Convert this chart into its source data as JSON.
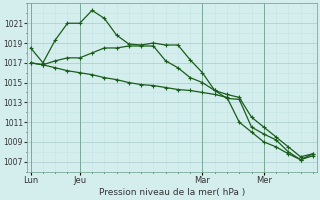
{
  "bg_color": "#d4eeee",
  "grid_color_major": "#aacccc",
  "grid_color_minor": "#c4e4e4",
  "line_color": "#1a5c1a",
  "title": "Pression niveau de la mer( hPa )",
  "xlabel_ticks": [
    "Lun",
    "Jeu",
    "Mar",
    "Mer"
  ],
  "xlabel_tick_positions": [
    0,
    4,
    14,
    19
  ],
  "ylim": [
    1006.0,
    1023.0
  ],
  "yticks": [
    1007,
    1009,
    1011,
    1013,
    1015,
    1017,
    1019,
    1021
  ],
  "xlim": [
    -0.3,
    23.3
  ],
  "series1_x": [
    0,
    1,
    2,
    3,
    4,
    5,
    6,
    7,
    8,
    9,
    10,
    11,
    12,
    13,
    14,
    15,
    16,
    17,
    18,
    19,
    20,
    21,
    22,
    23
  ],
  "series1_y": [
    1018.5,
    1017.0,
    1019.3,
    1021.0,
    1021.0,
    1022.3,
    1021.5,
    1019.8,
    1018.9,
    1018.8,
    1019.0,
    1018.8,
    1018.8,
    1017.3,
    1016.0,
    1014.2,
    1013.4,
    1013.3,
    1010.5,
    1009.8,
    1009.2,
    1008.0,
    1007.2,
    1007.8
  ],
  "series2_x": [
    0,
    1,
    2,
    3,
    4,
    5,
    6,
    7,
    8,
    9,
    10,
    11,
    12,
    13,
    14,
    15,
    16,
    17,
    18,
    19,
    20,
    21,
    22,
    23
  ],
  "series2_y": [
    1017.0,
    1016.8,
    1017.2,
    1017.5,
    1017.5,
    1018.0,
    1018.5,
    1018.5,
    1018.7,
    1018.7,
    1018.7,
    1017.2,
    1016.5,
    1015.5,
    1015.0,
    1014.2,
    1013.8,
    1013.5,
    1011.5,
    1010.5,
    1009.5,
    1008.5,
    1007.5,
    1007.8
  ],
  "series3_x": [
    0,
    1,
    2,
    3,
    4,
    5,
    6,
    7,
    8,
    9,
    10,
    11,
    12,
    13,
    14,
    15,
    16,
    17,
    18,
    19,
    20,
    21,
    22,
    23
  ],
  "series3_y": [
    1017.0,
    1016.8,
    1016.5,
    1016.2,
    1016.0,
    1015.8,
    1015.5,
    1015.3,
    1015.0,
    1014.8,
    1014.7,
    1014.5,
    1014.3,
    1014.2,
    1014.0,
    1013.8,
    1013.5,
    1011.0,
    1010.0,
    1009.0,
    1008.5,
    1007.8,
    1007.2,
    1007.6
  ]
}
